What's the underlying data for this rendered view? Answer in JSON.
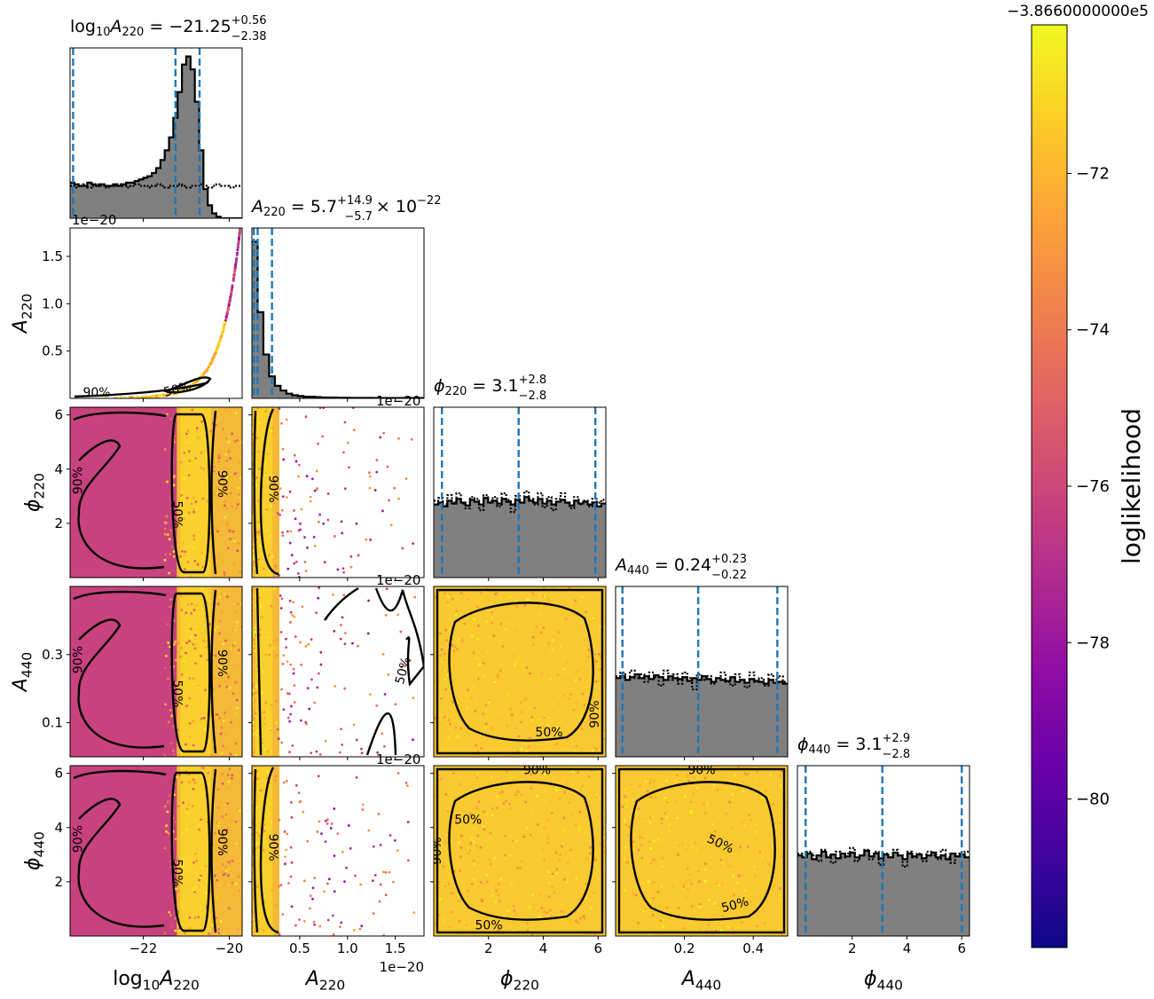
{
  "chart_data": {
    "type": "corner",
    "parameters": [
      {
        "key": "log10A220",
        "label": "log₁₀A₂₂₀",
        "title": "log₁₀A₂₂₀ = −21.25⁺⁰·⁵⁶₋₂.₃₈",
        "title_text": "log10A220 = −21.25 +0.56 −2.38",
        "range": [
          -23.7,
          -19.7
        ],
        "ticks": [
          -22,
          -20
        ],
        "tick_labels": [
          "−22",
          "−20"
        ],
        "quantiles": [
          -23.63,
          -21.25,
          -20.69
        ],
        "hist": [
          0.22,
          0.21,
          0.2,
          0.2,
          0.22,
          0.21,
          0.2,
          0.21,
          0.2,
          0.2,
          0.21,
          0.2,
          0.21,
          0.22,
          0.22,
          0.23,
          0.24,
          0.25,
          0.26,
          0.28,
          0.31,
          0.36,
          0.42,
          0.5,
          0.62,
          0.78,
          0.95,
          1.0,
          0.92,
          0.72,
          0.42,
          0.18,
          0.08,
          0.03,
          0.01,
          0.0,
          0.0,
          0.0,
          0.0,
          0.0
        ],
        "prior": [
          0.2,
          0.19,
          0.2,
          0.21,
          0.19,
          0.2,
          0.21,
          0.2,
          0.19,
          0.2,
          0.2,
          0.21,
          0.2,
          0.19,
          0.2,
          0.21,
          0.2,
          0.2,
          0.19,
          0.2,
          0.21,
          0.2,
          0.19,
          0.2,
          0.2,
          0.21,
          0.2,
          0.19,
          0.2,
          0.2,
          0.21,
          0.2,
          0.19,
          0.2,
          0.21,
          0.2,
          0.2,
          0.19,
          0.2,
          0.2
        ],
        "offset_label": "1e−20"
      },
      {
        "key": "A220",
        "label": "A₂₂₀",
        "title_text": "A220 = 5.7 +14.9 −5.7 × 10⁻²²",
        "range": [
          0,
          1.8
        ],
        "ticks": [
          0.5,
          1.0,
          1.5
        ],
        "tick_labels": [
          "0.5",
          "1.0",
          "1.5"
        ],
        "quantiles": [
          0.02,
          0.06,
          0.21
        ],
        "hist": [
          1.0,
          0.55,
          0.28,
          0.14,
          0.08,
          0.05,
          0.03,
          0.02,
          0.015,
          0.01,
          0.01,
          0.008,
          0.006,
          0.005,
          0.005,
          0.004,
          0.004,
          0.003,
          0.003,
          0.003,
          0.003,
          0.002,
          0.002,
          0.002,
          0.002,
          0.002,
          0.002,
          0.002,
          0.002,
          0.002
        ],
        "offset_label": "1e−20"
      },
      {
        "key": "phi220",
        "label": "ϕ₂₂₀",
        "title_text": "ϕ220 = 3.1 +2.8 −2.8",
        "range": [
          0,
          6.283
        ],
        "ticks": [
          2,
          4,
          6
        ],
        "tick_labels": [
          "2",
          "4",
          "6"
        ],
        "quantiles": [
          0.3,
          3.1,
          5.9
        ],
        "hist": [
          0.78,
          0.8,
          0.76,
          0.82,
          0.79,
          0.84,
          0.8,
          0.77,
          0.83,
          0.81,
          0.78,
          0.85,
          0.8,
          0.82,
          0.79,
          0.84,
          0.81,
          0.78,
          0.83,
          0.8,
          0.86,
          0.82,
          0.8,
          0.84,
          0.79,
          0.82,
          0.78,
          0.81,
          0.83,
          0.8,
          0.77,
          0.82,
          0.79,
          0.81,
          0.78,
          0.8,
          0.76,
          0.79
        ],
        "prior": [
          0.82,
          0.85,
          0.78,
          0.88,
          0.8,
          0.9,
          0.79,
          0.74,
          0.86,
          0.84,
          0.72,
          0.88,
          0.82,
          0.86,
          0.76,
          0.9,
          0.83,
          0.7,
          0.87,
          0.8,
          0.92,
          0.84,
          0.78,
          0.9,
          0.75,
          0.86,
          0.72,
          0.84,
          0.9,
          0.8,
          0.74,
          0.86,
          0.78,
          0.82,
          0.76,
          0.84,
          0.8,
          0.83
        ]
      },
      {
        "key": "A440",
        "label": "A₄₄₀",
        "title_text": "A440 = 0.24 +0.23 −0.22",
        "range": [
          0,
          0.5
        ],
        "ticks": [
          0.2,
          0.4
        ],
        "tick_labels": [
          "0.2",
          "0.4"
        ],
        "quantiles": [
          0.02,
          0.24,
          0.47
        ],
        "hist": [
          0.84,
          0.86,
          0.82,
          0.85,
          0.88,
          0.84,
          0.86,
          0.83,
          0.87,
          0.85,
          0.82,
          0.86,
          0.84,
          0.83,
          0.85,
          0.81,
          0.84,
          0.82,
          0.86,
          0.83,
          0.8,
          0.84,
          0.82,
          0.81,
          0.85,
          0.8,
          0.82,
          0.79,
          0.83,
          0.81,
          0.8,
          0.78,
          0.82,
          0.79,
          0.8,
          0.78
        ],
        "prior": [
          0.86,
          0.9,
          0.82,
          0.92,
          0.84,
          0.88,
          0.8,
          0.9,
          0.85,
          0.76,
          0.92,
          0.82,
          0.88,
          0.78,
          0.9,
          0.84,
          0.72,
          0.88,
          0.82,
          0.86,
          0.78,
          0.84,
          0.9,
          0.8,
          0.76,
          0.88,
          0.82,
          0.74,
          0.9,
          0.8,
          0.84,
          0.76,
          0.88,
          0.82,
          0.86,
          0.8
        ]
      },
      {
        "key": "phi440",
        "label": "ϕ₄₄₀",
        "title_text": "ϕ440 = 3.1 +2.9 −2.8",
        "range": [
          0,
          6.283
        ],
        "ticks": [
          2,
          4,
          6
        ],
        "tick_labels": [
          "2",
          "4",
          "6"
        ],
        "quantiles": [
          0.3,
          3.1,
          6.0
        ],
        "hist": [
          0.86,
          0.84,
          0.88,
          0.82,
          0.86,
          0.9,
          0.84,
          0.87,
          0.83,
          0.88,
          0.85,
          0.89,
          0.84,
          0.86,
          0.91,
          0.85,
          0.88,
          0.83,
          0.87,
          0.84,
          0.89,
          0.86,
          0.82,
          0.88,
          0.85,
          0.87,
          0.83,
          0.86,
          0.89,
          0.84,
          0.86,
          0.82,
          0.88,
          0.85,
          0.87,
          0.84
        ],
        "prior": [
          0.88,
          0.84,
          0.9,
          0.86,
          0.8,
          0.92,
          0.86,
          0.78,
          0.9,
          0.84,
          0.88,
          0.94,
          0.8,
          0.86,
          0.92,
          0.82,
          0.9,
          0.76,
          0.88,
          0.84,
          0.92,
          0.86,
          0.74,
          0.9,
          0.84,
          0.88,
          0.8,
          0.9,
          0.86,
          0.82,
          0.92,
          0.84,
          0.78,
          0.88,
          0.86,
          0.9
        ]
      }
    ],
    "axis_ticks": {
      "A220_y": {
        "ticks": [
          0.5,
          1.0,
          1.5
        ],
        "labels": [
          "0.5",
          "1.0",
          "1.5"
        ]
      },
      "phi220_y": {
        "ticks": [
          2,
          4,
          6
        ],
        "labels": [
          "2",
          "4",
          "6"
        ]
      },
      "A440_y": {
        "ticks": [
          0.1,
          0.3
        ],
        "labels": [
          "0.1",
          "0.3"
        ]
      },
      "phi440_y": {
        "ticks": [
          2,
          4,
          6
        ],
        "labels": [
          "2",
          "4",
          "6"
        ]
      }
    },
    "contour_labels": [
      "50%",
      "90%"
    ],
    "colorbar": {
      "label": "loglikelihood",
      "colormap": "plasma",
      "range": [
        -81.9,
        -70.1
      ],
      "ticks": [
        -80,
        -78,
        -76,
        -74,
        -72
      ],
      "tick_labels": [
        "−80",
        "−78",
        "−76",
        "−74",
        "−72"
      ],
      "offset": "−3.8660000000e5"
    },
    "colors": {
      "hist_fill": "#808080",
      "quantile_line": "#1f77b4",
      "contour": "#000000",
      "scatter_main": "#f6c431",
      "scatter_low": "#c8437e"
    },
    "titles": {
      "t0": {
        "base": "log",
        "sub1": "10",
        "mid": "A",
        "sub2": "220",
        "rest": " = −21.25",
        "sup": "+0.56",
        "sub": "−2.38"
      },
      "t1": {
        "mid": "A",
        "sub2": "220",
        "rest": " = 5.7",
        "sup": "+14.9",
        "sub": "−5.7",
        "tail": " × 10",
        "tailsup": "−22"
      },
      "t2": {
        "mid": "ϕ",
        "sub2": "220",
        "rest": " = 3.1",
        "sup": "+2.8",
        "sub": "−2.8"
      },
      "t3": {
        "mid": "A",
        "sub2": "440",
        "rest": " = 0.24",
        "sup": "+0.23",
        "sub": "−0.22"
      },
      "t4": {
        "mid": "ϕ",
        "sub2": "440",
        "rest": " = 3.1",
        "sup": "+2.9",
        "sub": "−2.8"
      }
    },
    "axis_labels": {
      "x0": {
        "a": "log",
        "s1": "10",
        "b": "A",
        "s2": "220"
      },
      "x1": {
        "b": "A",
        "s2": "220"
      },
      "x2": {
        "b": "ϕ",
        "s2": "220"
      },
      "x3": {
        "b": "A",
        "s2": "440"
      },
      "x4": {
        "b": "ϕ",
        "s2": "440"
      },
      "y1": {
        "b": "A",
        "s2": "220"
      },
      "y2": {
        "b": "ϕ",
        "s2": "220"
      },
      "y3": {
        "b": "A",
        "s2": "440"
      },
      "y4": {
        "b": "ϕ",
        "s2": "440"
      }
    }
  }
}
